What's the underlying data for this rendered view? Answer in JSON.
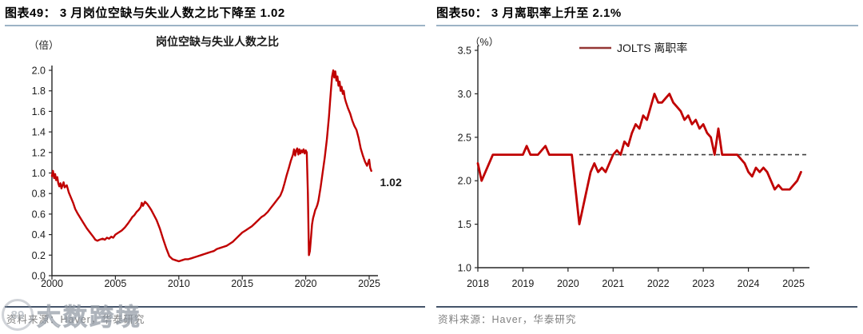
{
  "left_panel": {
    "header": "图表49：  3 月岗位空缺与失业人数之比下降至 1.02",
    "source": "资料来源：Haver，华泰研究"
  },
  "right_panel": {
    "header": "图表50：  3 月离职率上升至 2.1%",
    "source": "资料来源：Haver，华泰研究"
  },
  "watermark": {
    "logo": "89",
    "text": "大数跨境"
  },
  "colors": {
    "line_red": "#c00000",
    "legend_red": "#943634",
    "annotation_red": "#c00000",
    "axis": "#262626",
    "dashed": "#3f3f3f",
    "header_rule": "#9db3c6",
    "source_rule": "#44546a",
    "source_text": "#7f7f7f"
  },
  "chart_data": [
    {
      "type": "line",
      "title": "岗位空缺与失业人数之比",
      "unit": "（倍）",
      "xlim": [
        2000,
        2025.6
      ],
      "ylim": [
        0,
        2.0
      ],
      "xticks": {
        "values": [
          2000,
          2005,
          2010,
          2015,
          2020,
          2025
        ],
        "labels": [
          "2000",
          "2005",
          "2010",
          "2015",
          "2020",
          "2025"
        ]
      },
      "yticks": {
        "values": [
          0,
          0.2,
          0.4,
          0.6,
          0.8,
          1.0,
          1.2,
          1.4,
          1.6,
          1.8,
          2.0
        ],
        "labels": [
          "0.0",
          "0.2",
          "0.4",
          "0.6",
          "0.8",
          "1.0",
          "1.2",
          "1.4",
          "1.6",
          "1.8",
          "2.0"
        ]
      },
      "annotation": {
        "text": "1.02",
        "x": 2025.85,
        "y": 0.87,
        "color": "#c00000"
      },
      "series": [
        {
          "name": "岗位空缺与失业人数之比",
          "color": "#c00000",
          "points": [
            [
              2000.0,
              0.97
            ],
            [
              2000.08,
              1.02
            ],
            [
              2000.17,
              0.95
            ],
            [
              2000.25,
              0.99
            ],
            [
              2000.33,
              0.93
            ],
            [
              2000.42,
              0.96
            ],
            [
              2000.5,
              0.9
            ],
            [
              2000.58,
              0.87
            ],
            [
              2000.67,
              0.9
            ],
            [
              2000.75,
              0.85
            ],
            [
              2000.83,
              0.88
            ],
            [
              2000.92,
              0.91
            ],
            [
              2001.0,
              0.86
            ],
            [
              2001.17,
              0.88
            ],
            [
              2001.33,
              0.81
            ],
            [
              2001.5,
              0.76
            ],
            [
              2001.67,
              0.71
            ],
            [
              2001.83,
              0.65
            ],
            [
              2002.0,
              0.61
            ],
            [
              2002.25,
              0.56
            ],
            [
              2002.5,
              0.51
            ],
            [
              2002.75,
              0.46
            ],
            [
              2003.0,
              0.42
            ],
            [
              2003.25,
              0.38
            ],
            [
              2003.42,
              0.35
            ],
            [
              2003.58,
              0.34
            ],
            [
              2003.75,
              0.35
            ],
            [
              2004.0,
              0.36
            ],
            [
              2004.17,
              0.35
            ],
            [
              2004.33,
              0.37
            ],
            [
              2004.5,
              0.36
            ],
            [
              2004.67,
              0.38
            ],
            [
              2004.83,
              0.37
            ],
            [
              2005.0,
              0.4
            ],
            [
              2005.25,
              0.42
            ],
            [
              2005.5,
              0.44
            ],
            [
              2005.75,
              0.47
            ],
            [
              2006.0,
              0.51
            ],
            [
              2006.17,
              0.54
            ],
            [
              2006.33,
              0.57
            ],
            [
              2006.5,
              0.59
            ],
            [
              2006.67,
              0.62
            ],
            [
              2006.83,
              0.64
            ],
            [
              2007.0,
              0.67
            ],
            [
              2007.08,
              0.71
            ],
            [
              2007.17,
              0.68
            ],
            [
              2007.33,
              0.72
            ],
            [
              2007.5,
              0.7
            ],
            [
              2007.67,
              0.67
            ],
            [
              2007.83,
              0.64
            ],
            [
              2008.0,
              0.6
            ],
            [
              2008.25,
              0.54
            ],
            [
              2008.5,
              0.46
            ],
            [
              2008.75,
              0.36
            ],
            [
              2009.0,
              0.27
            ],
            [
              2009.25,
              0.19
            ],
            [
              2009.5,
              0.16
            ],
            [
              2009.75,
              0.15
            ],
            [
              2010.0,
              0.14
            ],
            [
              2010.25,
              0.15
            ],
            [
              2010.5,
              0.16
            ],
            [
              2010.75,
              0.16
            ],
            [
              2011.0,
              0.17
            ],
            [
              2011.25,
              0.18
            ],
            [
              2011.5,
              0.19
            ],
            [
              2011.75,
              0.2
            ],
            [
              2012.0,
              0.21
            ],
            [
              2012.25,
              0.22
            ],
            [
              2012.5,
              0.23
            ],
            [
              2012.75,
              0.24
            ],
            [
              2013.0,
              0.26
            ],
            [
              2013.25,
              0.27
            ],
            [
              2013.5,
              0.28
            ],
            [
              2013.75,
              0.29
            ],
            [
              2014.0,
              0.31
            ],
            [
              2014.25,
              0.33
            ],
            [
              2014.5,
              0.36
            ],
            [
              2014.75,
              0.39
            ],
            [
              2015.0,
              0.42
            ],
            [
              2015.25,
              0.44
            ],
            [
              2015.5,
              0.46
            ],
            [
              2015.75,
              0.48
            ],
            [
              2016.0,
              0.51
            ],
            [
              2016.25,
              0.54
            ],
            [
              2016.5,
              0.57
            ],
            [
              2016.75,
              0.59
            ],
            [
              2017.0,
              0.62
            ],
            [
              2017.25,
              0.66
            ],
            [
              2017.5,
              0.7
            ],
            [
              2017.75,
              0.74
            ],
            [
              2018.0,
              0.78
            ],
            [
              2018.17,
              0.83
            ],
            [
              2018.33,
              0.9
            ],
            [
              2018.5,
              0.98
            ],
            [
              2018.67,
              1.05
            ],
            [
              2018.83,
              1.12
            ],
            [
              2019.0,
              1.18
            ],
            [
              2019.08,
              1.23
            ],
            [
              2019.17,
              1.17
            ],
            [
              2019.25,
              1.22
            ],
            [
              2019.33,
              1.24
            ],
            [
              2019.42,
              1.18
            ],
            [
              2019.5,
              1.23
            ],
            [
              2019.58,
              1.19
            ],
            [
              2019.67,
              1.22
            ],
            [
              2019.75,
              1.2
            ],
            [
              2019.83,
              1.23
            ],
            [
              2019.92,
              1.19
            ],
            [
              2020.0,
              1.22
            ],
            [
              2020.08,
              1.2
            ],
            [
              2020.17,
              0.8
            ],
            [
              2020.25,
              0.2
            ],
            [
              2020.33,
              0.24
            ],
            [
              2020.42,
              0.38
            ],
            [
              2020.5,
              0.5
            ],
            [
              2020.58,
              0.56
            ],
            [
              2020.67,
              0.6
            ],
            [
              2020.75,
              0.64
            ],
            [
              2020.83,
              0.66
            ],
            [
              2020.92,
              0.69
            ],
            [
              2021.0,
              0.73
            ],
            [
              2021.17,
              0.86
            ],
            [
              2021.33,
              1.0
            ],
            [
              2021.5,
              1.15
            ],
            [
              2021.67,
              1.33
            ],
            [
              2021.83,
              1.55
            ],
            [
              2021.92,
              1.7
            ],
            [
              2022.0,
              1.83
            ],
            [
              2022.08,
              1.94
            ],
            [
              2022.17,
              2.0
            ],
            [
              2022.25,
              1.93
            ],
            [
              2022.33,
              1.99
            ],
            [
              2022.42,
              1.9
            ],
            [
              2022.5,
              1.94
            ],
            [
              2022.58,
              1.85
            ],
            [
              2022.67,
              1.89
            ],
            [
              2022.75,
              1.8
            ],
            [
              2022.83,
              1.84
            ],
            [
              2022.92,
              1.77
            ],
            [
              2023.0,
              1.8
            ],
            [
              2023.08,
              1.73
            ],
            [
              2023.17,
              1.69
            ],
            [
              2023.33,
              1.63
            ],
            [
              2023.5,
              1.58
            ],
            [
              2023.67,
              1.51
            ],
            [
              2023.83,
              1.46
            ],
            [
              2024.0,
              1.42
            ],
            [
              2024.17,
              1.34
            ],
            [
              2024.33,
              1.24
            ],
            [
              2024.5,
              1.17
            ],
            [
              2024.67,
              1.11
            ],
            [
              2024.83,
              1.07
            ],
            [
              2024.92,
              1.1
            ],
            [
              2025.0,
              1.13
            ],
            [
              2025.08,
              1.05
            ],
            [
              2025.17,
              1.02
            ]
          ]
        }
      ]
    },
    {
      "type": "line",
      "title": "",
      "unit": "（%）",
      "legend": {
        "label": "JOLTS 离职率",
        "color": "#943634"
      },
      "xlim": [
        2018,
        2025.4
      ],
      "ylim": [
        1.0,
        3.5
      ],
      "xticks": {
        "values": [
          2018,
          2019,
          2020,
          2021,
          2022,
          2023,
          2024,
          2025
        ],
        "labels": [
          "2018",
          "2019",
          "2020",
          "2021",
          "2022",
          "2023",
          "2024",
          "2025"
        ]
      },
      "yticks": {
        "values": [
          1.0,
          1.5,
          2.0,
          2.5,
          3.0,
          3.5
        ],
        "labels": [
          "1.0",
          "1.5",
          "2.0",
          "2.5",
          "3.0",
          "3.5"
        ]
      },
      "ref_line": {
        "value": 2.3,
        "x_start": 2020.25,
        "x_end": 2025.35,
        "color": "#3f3f3f"
      },
      "series": [
        {
          "name": "JOLTS 离职率",
          "color": "#c00000",
          "x_start": 2018,
          "step_months": 1,
          "values": [
            2.2,
            2.0,
            2.1,
            2.2,
            2.3,
            2.3,
            2.3,
            2.3,
            2.3,
            2.3,
            2.3,
            2.3,
            2.3,
            2.4,
            2.3,
            2.3,
            2.3,
            2.35,
            2.4,
            2.3,
            2.3,
            2.3,
            2.3,
            2.3,
            2.3,
            2.3,
            1.9,
            1.5,
            1.7,
            1.9,
            2.1,
            2.2,
            2.1,
            2.15,
            2.1,
            2.2,
            2.3,
            2.35,
            2.3,
            2.45,
            2.4,
            2.55,
            2.65,
            2.6,
            2.75,
            2.7,
            2.85,
            3.0,
            2.9,
            2.9,
            2.95,
            3.0,
            2.9,
            2.85,
            2.8,
            2.7,
            2.75,
            2.65,
            2.7,
            2.6,
            2.65,
            2.55,
            2.5,
            2.3,
            2.6,
            2.3,
            2.3,
            2.3,
            2.3,
            2.3,
            2.25,
            2.2,
            2.1,
            2.05,
            2.15,
            2.1,
            2.15,
            2.1,
            2.0,
            1.9,
            1.95,
            1.9,
            1.9,
            1.9,
            1.95,
            2.0,
            2.1
          ]
        }
      ]
    }
  ]
}
